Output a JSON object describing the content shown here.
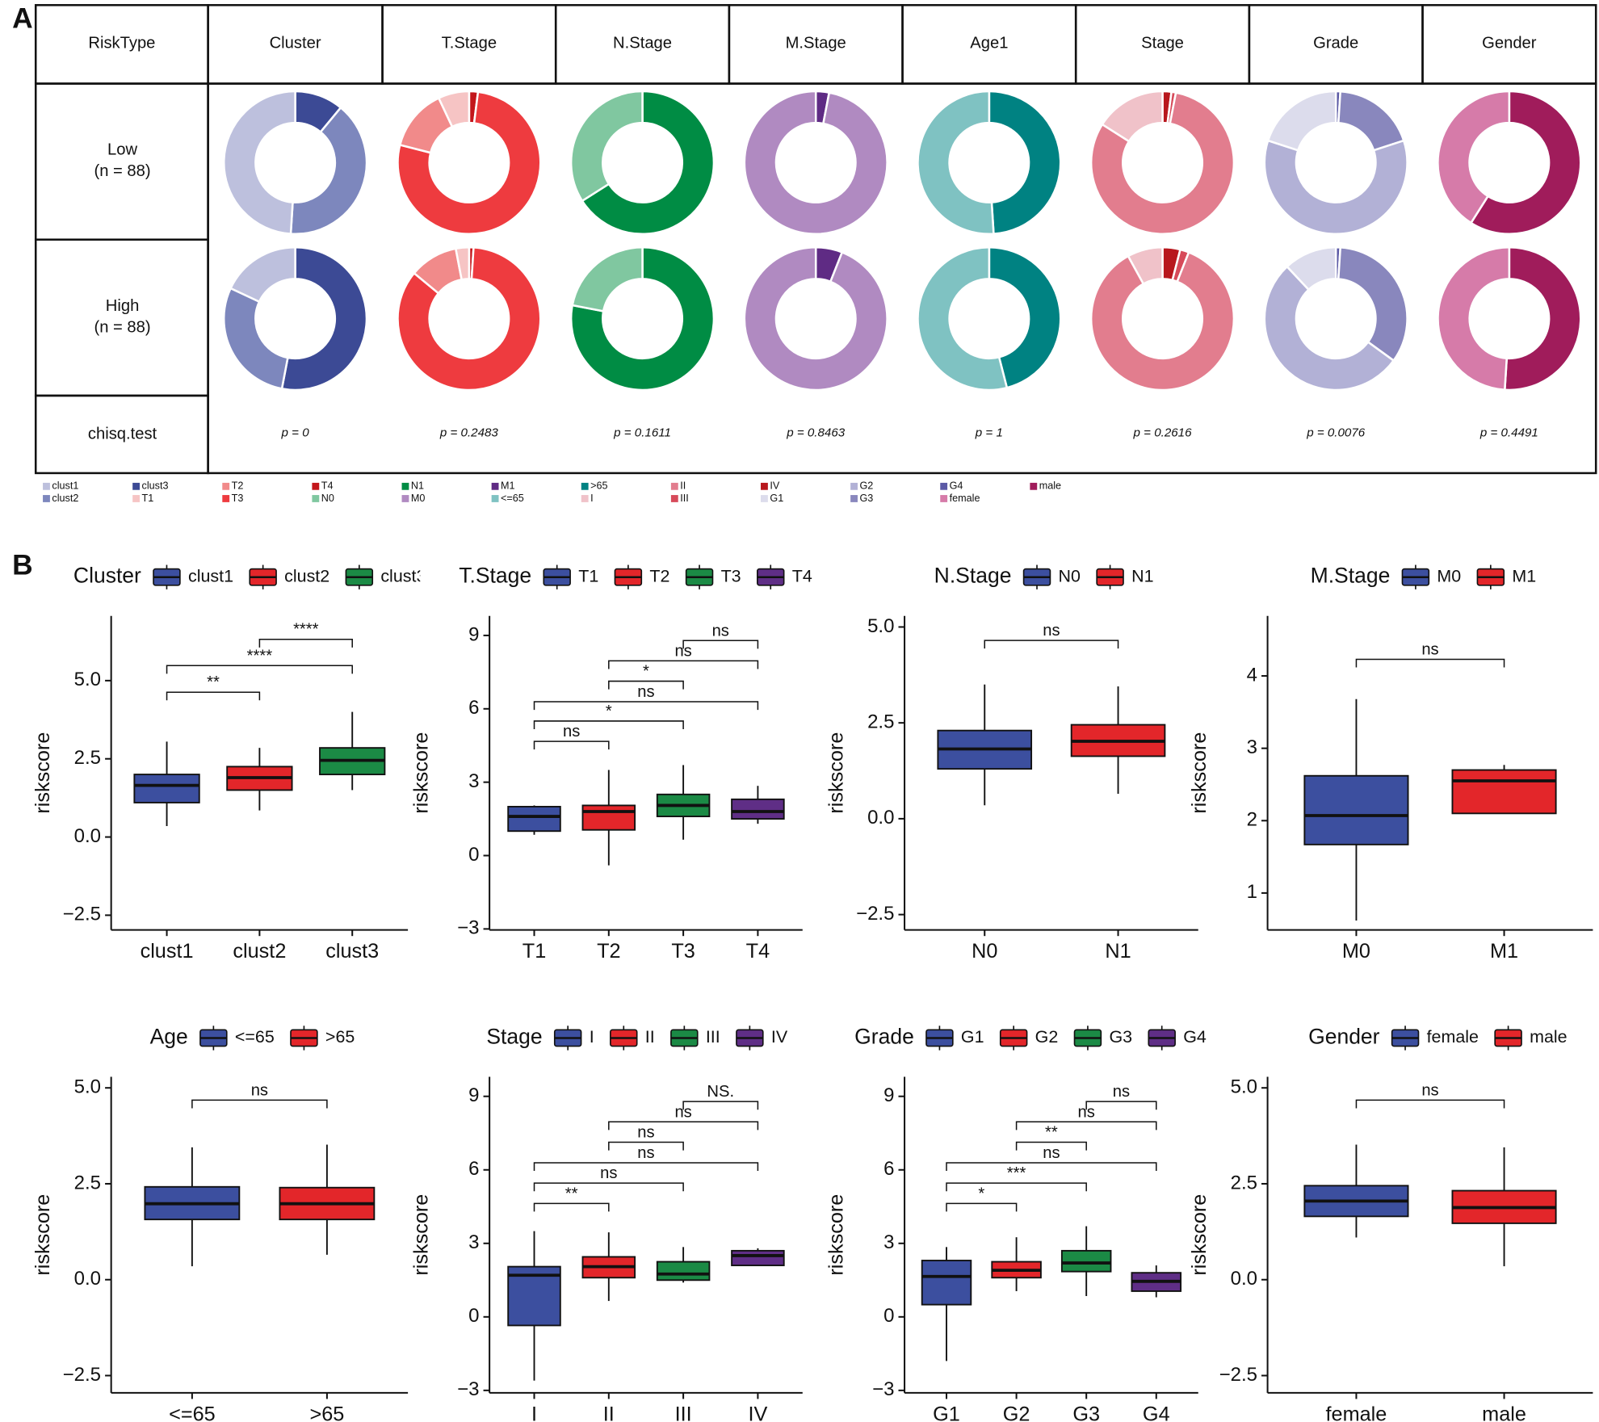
{
  "panel_labels": [
    "A",
    "B"
  ],
  "donut_table": {
    "corner": "RiskType",
    "rows": [
      {
        "label": "Low",
        "n": "(n = 88)"
      },
      {
        "label": "High",
        "n": "(n = 88)"
      }
    ],
    "test": "chisq.test",
    "columns": [
      {
        "name": "Cluster",
        "categories": [
          "clust1",
          "clust2",
          "clust3"
        ],
        "colors": [
          "#bdc0dd",
          "#7d87bd",
          "#3c4a95"
        ],
        "values": [
          [
            49,
            40,
            11
          ],
          [
            18,
            29,
            53
          ]
        ],
        "p": "p = 0"
      },
      {
        "name": "T.Stage",
        "categories": [
          "T1",
          "T2",
          "T3",
          "T4"
        ],
        "colors": [
          "#f6c4c4",
          "#f18a8a",
          "#ee3b3f",
          "#c3161b"
        ],
        "values": [
          [
            7,
            14,
            77,
            2
          ],
          [
            3,
            11,
            85,
            1
          ]
        ],
        "p": "p = 0.2483"
      },
      {
        "name": "N.Stage",
        "categories": [
          "N0",
          "N1"
        ],
        "colors": [
          "#80c7a0",
          "#008c44"
        ],
        "values": [
          [
            34,
            66
          ],
          [
            22,
            78
          ]
        ],
        "p": "p = 0.1611"
      },
      {
        "name": "M.Stage",
        "categories": [
          "M0",
          "M1"
        ],
        "colors": [
          "#b08ac1",
          "#5f2b84"
        ],
        "values": [
          [
            97,
            3
          ],
          [
            94,
            6
          ]
        ],
        "p": "p = 0.8463"
      },
      {
        "name": "Age1",
        "categories": [
          "<=65",
          ">65"
        ],
        "colors": [
          "#7fc2c2",
          "#008282"
        ],
        "values": [
          [
            51,
            49
          ],
          [
            54,
            46
          ]
        ],
        "p": "p = 1"
      },
      {
        "name": "Stage",
        "categories": [
          "I",
          "II",
          "III",
          "IV"
        ],
        "colors": [
          "#f0c2c9",
          "#e27d8e",
          "#d74a5a",
          "#b8171d"
        ],
        "values": [
          [
            16,
            81,
            1,
            2
          ],
          [
            8,
            86,
            2,
            4
          ]
        ],
        "p": "p = 0.2616"
      },
      {
        "name": "Grade",
        "categories": [
          "G1",
          "G2",
          "G3",
          "G4"
        ],
        "colors": [
          "#dcdcec",
          "#b2b1d6",
          "#8987bd",
          "#5b59a5"
        ],
        "values": [
          [
            20,
            60,
            19,
            1
          ],
          [
            12,
            53,
            34,
            1
          ]
        ],
        "p": "p = 0.0076"
      },
      {
        "name": "Gender",
        "categories": [
          "female",
          "male"
        ],
        "colors": [
          "#d67ba9",
          "#a01c5b"
        ],
        "values": [
          [
            41,
            59
          ],
          [
            49,
            51
          ]
        ],
        "p": "p = 0.4491"
      }
    ]
  },
  "chart_data": [
    {
      "type": "box",
      "legend_title": "Cluster",
      "ylabel": "riskscore",
      "categories": [
        "clust1",
        "clust2",
        "clust3"
      ],
      "colors": [
        "#3c4f9f",
        "#e3262a",
        "#1b8a45"
      ],
      "boxes": [
        {
          "min": 0.35,
          "q1": 1.1,
          "median": 1.65,
          "q3": 2.0,
          "max": 3.05
        },
        {
          "min": 0.85,
          "q1": 1.5,
          "median": 1.9,
          "q3": 2.25,
          "max": 2.85
        },
        {
          "min": 1.5,
          "q1": 2.0,
          "median": 2.45,
          "q3": 2.85,
          "max": 4.0
        }
      ],
      "ylim": [
        -2.97,
        7.07
      ],
      "yticks": [
        {
          "value": -2.5,
          "label": "−2.5"
        },
        {
          "value": 0,
          "label": "0.0"
        },
        {
          "value": 2.5,
          "label": "2.5"
        },
        {
          "value": 5,
          "label": "5.0"
        }
      ],
      "comparisons": [
        {
          "groups": [
            "clust1",
            "clust2"
          ],
          "label": "**",
          "y": 4.63
        },
        {
          "groups": [
            "clust1",
            "clust3"
          ],
          "label": "****",
          "y": 5.48
        },
        {
          "groups": [
            "clust2",
            "clust3"
          ],
          "label": "****",
          "y": 6.32
        }
      ]
    },
    {
      "type": "box",
      "legend_title": "T.Stage",
      "ylabel": "riskscore",
      "categories": [
        "T1",
        "T2",
        "T3",
        "T4"
      ],
      "colors": [
        "#3c4f9f",
        "#e3262a",
        "#1b8a45",
        "#5f2e86"
      ],
      "boxes": [
        {
          "min": 0.85,
          "q1": 1.0,
          "median": 1.6,
          "q3": 2.0,
          "max": 2.05
        },
        {
          "min": -0.4,
          "q1": 1.05,
          "median": 1.8,
          "q3": 2.05,
          "max": 3.5
        },
        {
          "min": 0.65,
          "q1": 1.6,
          "median": 2.05,
          "q3": 2.5,
          "max": 3.7
        },
        {
          "min": 1.3,
          "q1": 1.5,
          "median": 1.8,
          "q3": 2.3,
          "max": 2.85
        }
      ],
      "ylim": [
        -3.04,
        9.8
      ],
      "yticks": [
        {
          "value": -3,
          "label": "−3"
        },
        0,
        3,
        6,
        9
      ],
      "comparisons": [
        {
          "groups": [
            "T1",
            "T2"
          ],
          "label": "ns",
          "y": 4.67
        },
        {
          "groups": [
            "T1",
            "T3"
          ],
          "label": "*",
          "y": 5.5
        },
        {
          "groups": [
            "T1",
            "T4"
          ],
          "label": "ns",
          "y": 6.29
        },
        {
          "groups": [
            "T2",
            "T3"
          ],
          "label": "*",
          "y": 7.13
        },
        {
          "groups": [
            "T2",
            "T4"
          ],
          "label": "ns",
          "y": 7.96
        },
        {
          "groups": [
            "T3",
            "T4"
          ],
          "label": "ns",
          "y": 8.79
        }
      ]
    },
    {
      "type": "box",
      "legend_title": "N.Stage",
      "ylabel": "riskscore",
      "categories": [
        "N0",
        "N1"
      ],
      "colors": [
        "#3c4f9f",
        "#e3262a"
      ],
      "boxes": [
        {
          "min": 0.35,
          "q1": 1.3,
          "median": 1.82,
          "q3": 2.3,
          "max": 3.5
        },
        {
          "min": 0.65,
          "q1": 1.63,
          "median": 2.02,
          "q3": 2.45,
          "max": 3.45
        }
      ],
      "ylim": [
        -2.9,
        5.29
      ],
      "yticks": [
        {
          "value": -2.5,
          "label": "−2.5"
        },
        {
          "value": 0,
          "label": "0.0"
        },
        {
          "value": 2.5,
          "label": "2.5"
        },
        {
          "value": 5,
          "label": "5.0"
        }
      ],
      "comparisons": [
        {
          "groups": [
            "N0",
            "N1"
          ],
          "label": "ns",
          "y": 4.65
        }
      ]
    },
    {
      "type": "box",
      "legend_title": "M.Stage",
      "ylabel": "riskscore",
      "categories": [
        "M0",
        "M1"
      ],
      "colors": [
        "#3c4f9f",
        "#e3262a"
      ],
      "boxes": [
        {
          "min": 0.62,
          "q1": 1.67,
          "median": 2.07,
          "q3": 2.62,
          "max": 3.68
        },
        {
          "min": 2.1,
          "q1": 2.1,
          "median": 2.55,
          "q3": 2.7,
          "max": 2.77
        }
      ],
      "ylim": [
        0.49,
        4.83
      ],
      "yticks": [
        1,
        2,
        3,
        4
      ],
      "comparisons": [
        {
          "groups": [
            "M0",
            "M1"
          ],
          "label": "ns",
          "y": 4.23
        }
      ]
    },
    {
      "type": "box",
      "legend_title": "Age",
      "ylabel": "riskscore",
      "categories": [
        "<=65",
        ">65"
      ],
      "colors": [
        "#3c4f9f",
        "#e3262a"
      ],
      "boxes": [
        {
          "min": 0.35,
          "q1": 1.57,
          "median": 1.98,
          "q3": 2.42,
          "max": 3.45
        },
        {
          "min": 0.65,
          "q1": 1.57,
          "median": 1.98,
          "q3": 2.4,
          "max": 3.52
        }
      ],
      "ylim": [
        -2.95,
        5.29
      ],
      "yticks": [
        {
          "value": -2.5,
          "label": "−2.5"
        },
        {
          "value": 0,
          "label": "0.0"
        },
        {
          "value": 2.5,
          "label": "2.5"
        },
        {
          "value": 5,
          "label": "5.0"
        }
      ],
      "comparisons": [
        {
          "groups": [
            "<=65",
            ">65"
          ],
          "label": "ns",
          "y": 4.68
        }
      ]
    },
    {
      "type": "box",
      "legend_title": "Stage",
      "ylabel": "riskscore",
      "categories": [
        "I",
        "II",
        "III",
        "IV"
      ],
      "colors": [
        "#3c4f9f",
        "#e3262a",
        "#1b8a45",
        "#5f2e86"
      ],
      "boxes": [
        {
          "min": -2.6,
          "q1": -0.35,
          "median": 1.7,
          "q3": 2.05,
          "max": 3.5
        },
        {
          "min": 0.65,
          "q1": 1.6,
          "median": 2.05,
          "q3": 2.45,
          "max": 3.45
        },
        {
          "min": 1.4,
          "q1": 1.5,
          "median": 1.75,
          "q3": 2.25,
          "max": 2.85
        },
        {
          "min": 2.1,
          "q1": 2.1,
          "median": 2.5,
          "q3": 2.7,
          "max": 2.8
        }
      ],
      "ylim": [
        -3.1,
        9.8
      ],
      "yticks": [
        {
          "value": -3,
          "label": "−3"
        },
        0,
        3,
        6,
        9
      ],
      "comparisons": [
        {
          "groups": [
            "I",
            "II"
          ],
          "label": "**",
          "y": 4.63
        },
        {
          "groups": [
            "I",
            "III"
          ],
          "label": "ns",
          "y": 5.46
        },
        {
          "groups": [
            "I",
            "IV"
          ],
          "label": "ns",
          "y": 6.29
        },
        {
          "groups": [
            "II",
            "III"
          ],
          "label": "ns",
          "y": 7.13
        },
        {
          "groups": [
            "II",
            "IV"
          ],
          "label": "ns",
          "y": 7.96
        },
        {
          "groups": [
            "III",
            "IV"
          ],
          "label": "NS.",
          "y": 8.79
        }
      ]
    },
    {
      "type": "box",
      "legend_title": "Grade",
      "ylabel": "riskscore",
      "categories": [
        "G1",
        "G2",
        "G3",
        "G4"
      ],
      "colors": [
        "#3c4f9f",
        "#e3262a",
        "#1b8a45",
        "#5f2e86"
      ],
      "boxes": [
        {
          "min": -1.8,
          "q1": 0.5,
          "median": 1.65,
          "q3": 2.3,
          "max": 2.85
        },
        {
          "min": 1.05,
          "q1": 1.6,
          "median": 1.9,
          "q3": 2.25,
          "max": 3.25
        },
        {
          "min": 0.85,
          "q1": 1.85,
          "median": 2.2,
          "q3": 2.7,
          "max": 3.7
        },
        {
          "min": 0.8,
          "q1": 1.05,
          "median": 1.45,
          "q3": 1.8,
          "max": 2.1
        }
      ],
      "ylim": [
        -3.1,
        9.8
      ],
      "yticks": [
        {
          "value": -3,
          "label": "−3"
        },
        0,
        3,
        6,
        9
      ],
      "comparisons": [
        {
          "groups": [
            "G1",
            "G2"
          ],
          "label": "*",
          "y": 4.63
        },
        {
          "groups": [
            "G1",
            "G3"
          ],
          "label": "***",
          "y": 5.46
        },
        {
          "groups": [
            "G1",
            "G4"
          ],
          "label": "ns",
          "y": 6.29
        },
        {
          "groups": [
            "G2",
            "G3"
          ],
          "label": "**",
          "y": 7.13
        },
        {
          "groups": [
            "G2",
            "G4"
          ],
          "label": "ns",
          "y": 7.96
        },
        {
          "groups": [
            "G3",
            "G4"
          ],
          "label": "ns",
          "y": 8.79
        }
      ]
    },
    {
      "type": "box",
      "legend_title": "Gender",
      "ylabel": "riskscore",
      "categories": [
        "female",
        "male"
      ],
      "colors": [
        "#3c4f9f",
        "#e3262a"
      ],
      "boxes": [
        {
          "min": 1.1,
          "q1": 1.65,
          "median": 2.05,
          "q3": 2.45,
          "max": 3.52
        },
        {
          "min": 0.35,
          "q1": 1.47,
          "median": 1.88,
          "q3": 2.32,
          "max": 3.45
        }
      ],
      "ylim": [
        -2.95,
        5.29
      ],
      "yticks": [
        {
          "value": -2.5,
          "label": "−2.5"
        },
        {
          "value": 0,
          "label": "0.0"
        },
        {
          "value": 2.5,
          "label": "2.5"
        },
        {
          "value": 5,
          "label": "5.0"
        }
      ],
      "comparisons": [
        {
          "groups": [
            "female",
            "male"
          ],
          "label": "ns",
          "y": 4.68
        }
      ]
    }
  ]
}
